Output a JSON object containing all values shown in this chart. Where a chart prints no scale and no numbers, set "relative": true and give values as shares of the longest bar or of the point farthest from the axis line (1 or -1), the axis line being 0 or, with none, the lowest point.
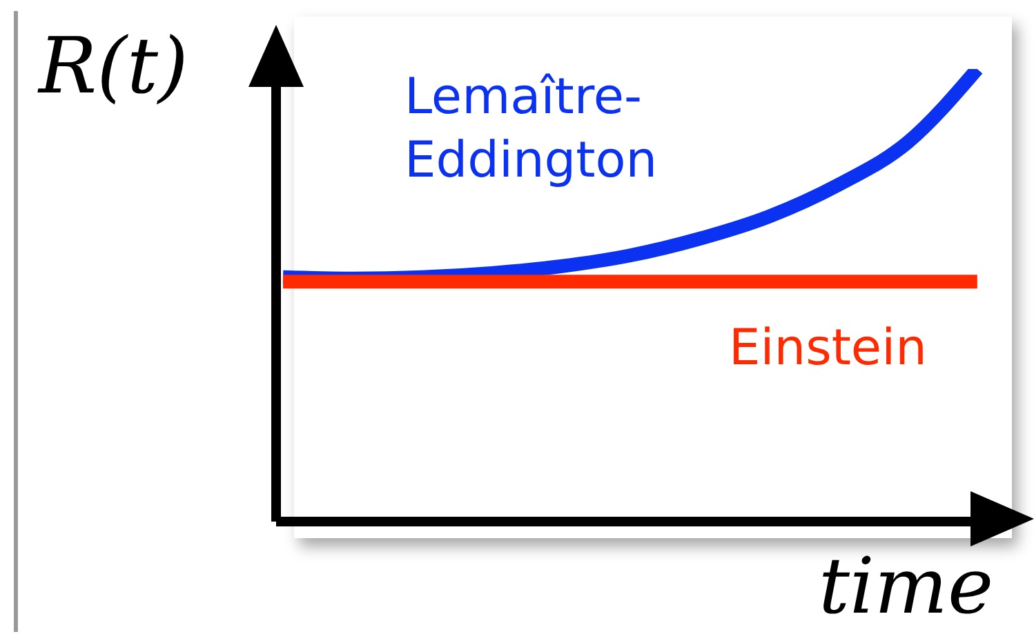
{
  "chart_data": {
    "type": "line",
    "relative": true,
    "xlabel": "time",
    "ylabel": "R(t)",
    "categories": [
      null,
      null,
      null,
      null,
      null,
      null,
      null,
      null,
      null,
      null,
      null
    ],
    "series": [
      {
        "name": "Lemaître-Eddington",
        "color": "#0a32f0",
        "values": [
          0.54,
          0.537,
          0.54,
          0.549,
          0.564,
          0.588,
          0.625,
          0.674,
          0.744,
          0.838,
          1
        ]
      },
      {
        "name": "Einstein",
        "color": "#ff2a00",
        "values": [
          0.53,
          0.53,
          0.53,
          0.53,
          0.53,
          0.53,
          0.53,
          0.53,
          0.53,
          0.53,
          0.53
        ]
      }
    ],
    "legend": false,
    "grid": false,
    "marker": "none",
    "line_style": "solid"
  }
}
